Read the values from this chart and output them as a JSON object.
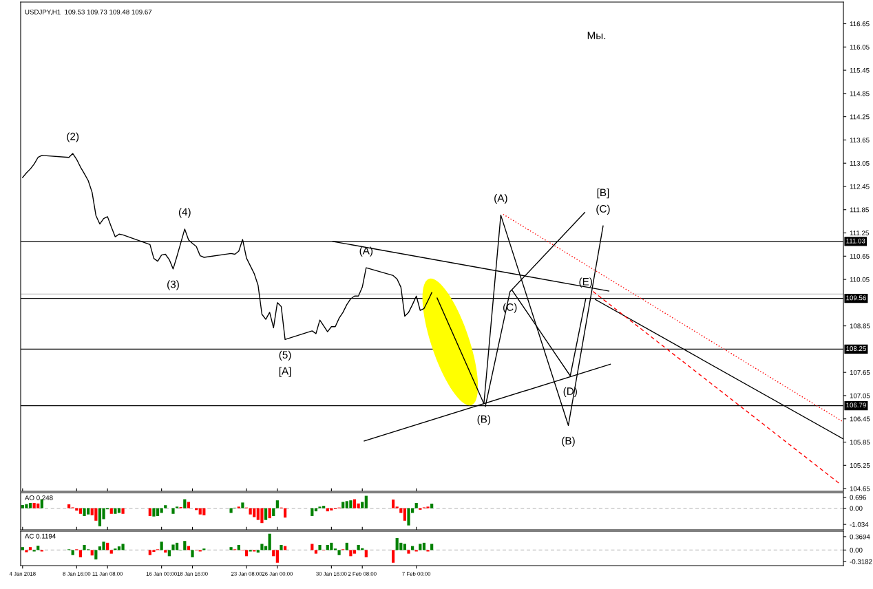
{
  "chart_data": [
    {
      "type": "line",
      "title": "USDJPY,H1  109.53 109.73 109.48 109.67",
      "xlim": [
        "2018-01-03T20:00",
        "2018-03-15T21:00"
      ],
      "ylim": [
        104.58,
        117.21
      ],
      "xticks": [
        {
          "value": "2018-01-04T00:00",
          "label": null
        },
        {
          "value": "2018-01-08T16:00",
          "label": null
        },
        {
          "value": "2018-01-11T08:00",
          "label": null
        },
        {
          "value": "2018-01-16T00:00",
          "label": null
        },
        {
          "value": "2018-01-18T16:00",
          "label": null
        },
        {
          "value": "2018-01-23T08:00",
          "label": null
        },
        {
          "value": "2018-01-26T00:00",
          "label": null
        },
        {
          "value": "2018-01-30T16:00",
          "label": null
        },
        {
          "value": "2018-02-02T08:00",
          "label": null
        },
        {
          "value": "2018-02-07T00:00",
          "label": null
        }
      ],
      "yticks": [
        104.65,
        105.25,
        105.85,
        106.45,
        107.05,
        107.65,
        108.85,
        110.05,
        110.65,
        111.25,
        111.85,
        112.45,
        113.05,
        113.65,
        114.25,
        114.85,
        115.45,
        116.05,
        116.65
      ],
      "tick_labels": "y",
      "x": [
        "2018-01-04T00:00",
        "2018-01-04T08:00",
        "2018-01-04T16:00",
        "2018-01-05T00:00",
        "2018-01-05T08:00",
        "2018-01-05T16:00",
        "2018-01-08T00:00",
        "2018-01-08T08:00",
        "2018-01-08T16:00",
        "2018-01-09T00:00",
        "2018-01-09T08:00",
        "2018-01-09T16:00",
        "2018-01-10T00:00",
        "2018-01-10T08:00",
        "2018-01-10T16:00",
        "2018-01-11T00:00",
        "2018-01-11T08:00",
        "2018-01-11T16:00",
        "2018-01-12T00:00",
        "2018-01-12T08:00",
        "2018-01-12T16:00",
        "2018-01-15T00:00",
        "2018-01-15T08:00",
        "2018-01-15T16:00",
        "2018-01-16T00:00",
        "2018-01-16T08:00",
        "2018-01-16T16:00",
        "2018-01-17T00:00",
        "2018-01-17T08:00",
        "2018-01-17T16:00",
        "2018-01-18T00:00",
        "2018-01-18T08:00",
        "2018-01-18T16:00",
        "2018-01-19T00:00",
        "2018-01-19T08:00",
        "2018-01-19T16:00",
        "2018-01-22T00:00",
        "2018-01-22T08:00",
        "2018-01-22T16:00",
        "2018-01-23T00:00",
        "2018-01-23T08:00",
        "2018-01-23T16:00",
        "2018-01-24T00:00",
        "2018-01-24T08:00",
        "2018-01-24T16:00",
        "2018-01-25T00:00",
        "2018-01-25T08:00",
        "2018-01-25T16:00",
        "2018-01-26T00:00",
        "2018-01-26T08:00",
        "2018-01-26T16:00",
        "2018-01-29T00:00",
        "2018-01-29T08:00",
        "2018-01-29T16:00",
        "2018-01-30T00:00",
        "2018-01-30T08:00",
        "2018-01-30T16:00",
        "2018-01-31T00:00",
        "2018-01-31T08:00",
        "2018-01-31T16:00",
        "2018-02-01T00:00",
        "2018-02-01T08:00",
        "2018-02-01T16:00",
        "2018-02-02T00:00",
        "2018-02-02T08:00",
        "2018-02-02T16:00",
        "2018-02-05T00:00",
        "2018-02-05T08:00",
        "2018-02-05T16:00",
        "2018-02-06T00:00",
        "2018-02-06T08:00",
        "2018-02-06T16:00",
        "2018-02-07T00:00",
        "2018-02-07T08:00",
        "2018-02-07T16:00",
        "2018-02-08T00:00",
        "2018-02-08T08:00"
      ],
      "series": [
        {
          "color": "#000000",
          "values": [
            112.68,
            112.8,
            112.9,
            113.03,
            113.2,
            113.25,
            113.2,
            113.3,
            113.15,
            112.95,
            112.78,
            112.6,
            112.3,
            111.7,
            111.48,
            111.62,
            111.67,
            111.4,
            111.15,
            111.22,
            111.2,
            110.95,
            110.59,
            110.52,
            110.68,
            110.7,
            110.56,
            110.32,
            110.65,
            111.0,
            111.35,
            111.07,
            110.98,
            110.9,
            110.66,
            110.62,
            110.72,
            110.7,
            110.78,
            111.08,
            110.6,
            110.4,
            110.2,
            109.9,
            109.15,
            109.02,
            109.2,
            108.8,
            109.45,
            109.35,
            108.5,
            108.72,
            108.65,
            109.0,
            108.85,
            108.7,
            108.83,
            108.83,
            109.05,
            109.2,
            109.4,
            109.55,
            109.62,
            109.62,
            109.85,
            110.35,
            110.15,
            110.06,
            109.85,
            109.1,
            109.2,
            109.4,
            109.62,
            109.25,
            109.3,
            109.5,
            109.71
          ]
        },
        {
          "type": "line",
          "color": "#000000",
          "x": [
            "2018-02-08T19:00",
            "2018-02-12T20:00",
            "2018-02-14T07:00",
            "2018-02-20T03:00",
            "2018-02-23T03:00"
          ],
          "values": [
            109.57,
            106.84,
            111.71,
            106.28,
            111.43
          ]
        },
        {
          "type": "line",
          "color": "#000000",
          "x": [
            "2018-02-12T23:00",
            "2018-02-15T02:00",
            "2018-02-21T13:00"
          ],
          "values": [
            106.77,
            109.73,
            111.78
          ]
        },
        {
          "type": "line",
          "color": "#000000",
          "x": [
            "2018-02-15T07:00",
            "2018-02-20T07:00",
            "2018-02-21T15:00"
          ],
          "values": [
            109.76,
            107.56,
            109.55
          ]
        },
        {
          "type": "line",
          "color": "#000000",
          "x": [
            "2018-01-30T19:00",
            "2018-02-23T15:00"
          ],
          "values": [
            111.03,
            109.75
          ]
        },
        {
          "type": "line",
          "color": "#000000",
          "x": [
            "2018-02-02T12:00",
            "2018-02-23T18:00"
          ],
          "values": [
            105.88,
            107.86
          ]
        },
        {
          "type": "line",
          "color": "#000000",
          "x": [
            "2018-02-22T11:00",
            "2018-03-15T21:00"
          ],
          "values": [
            109.53,
            105.93
          ]
        },
        {
          "type": "line",
          "color": "#ff0000",
          "line_style": "dotted",
          "x": [
            "2018-02-14T12:00",
            "2018-03-15T21:00"
          ],
          "values": [
            111.73,
            106.37
          ]
        },
        {
          "type": "line",
          "color": "#ff0000",
          "line_style": "dashed",
          "x": [
            "2018-02-22T06:00",
            "2018-03-15T16:00"
          ],
          "values": [
            109.74,
            104.75
          ]
        }
      ],
      "ref_lines": [
        {
          "axis": "y",
          "value": 111.03,
          "label": "111.03",
          "color": "#000000"
        },
        {
          "axis": "y",
          "value": 109.67,
          "label": null,
          "color": "#c0c0c0"
        },
        {
          "axis": "y",
          "value": 109.56,
          "label": "109.56",
          "color": "#000000"
        },
        {
          "axis": "y",
          "value": 108.25,
          "label": "108.25",
          "color": "#000000"
        },
        {
          "axis": "y",
          "value": 106.79,
          "label": "106.79",
          "color": "#000000"
        }
      ],
      "annotations": [
        {
          "text": "(2)",
          "x": "2018-01-08T08:00",
          "y": 113.3
        },
        {
          "text": "(4)",
          "x": "2018-01-18T00:00",
          "y": 111.35
        },
        {
          "text": "(3)",
          "x": "2018-01-17T00:00",
          "y": 110.32
        },
        {
          "text": "(5)",
          "x": "2018-01-26T16:00",
          "y": 108.5
        },
        {
          "text": "[A]",
          "x": "2018-01-26T16:00",
          "y": 108.5
        },
        {
          "text": "(A)",
          "x": "2018-02-02T16:00",
          "y": 110.35
        },
        {
          "text": "(A)",
          "x": "2018-02-14T07:00",
          "y": 111.71
        },
        {
          "text": "(C)",
          "x": "2018-02-23T03:00",
          "y": 111.43
        },
        {
          "text": "[B]",
          "x": "2018-02-23T03:00",
          "y": 111.43
        },
        {
          "text": "(C)",
          "x": "2018-02-15T02:00",
          "y": 109.73
        },
        {
          "text": "(E)",
          "x": "2018-02-21T15:00",
          "y": 109.55
        },
        {
          "text": "(D)",
          "x": "2018-02-20T07:00",
          "y": 107.56
        },
        {
          "text": "(B)",
          "x": "2018-02-12T20:00",
          "y": 106.84
        },
        {
          "text": "(B)",
          "x": "2018-02-20T03:00",
          "y": 106.28
        },
        "Мы."
      ]
    },
    {
      "type": "bar",
      "title": "AO 0.248",
      "xlim": [
        "2018-01-03T20:00",
        "2018-03-15T21:00"
      ],
      "ylim": [
        -1.38,
        0.99
      ],
      "xticks": [
        {
          "value": "2018-01-04T00:00",
          "label": null
        },
        {
          "value": "2018-01-08T16:00",
          "label": null
        },
        {
          "value": "2018-01-11T08:00",
          "label": null
        },
        {
          "value": "2018-01-16T00:00",
          "label": null
        },
        {
          "value": "2018-01-18T16:00",
          "label": null
        },
        {
          "value": "2018-01-23T08:00",
          "label": null
        },
        {
          "value": "2018-01-26T00:00",
          "label": null
        },
        {
          "value": "2018-01-30T16:00",
          "label": null
        },
        {
          "value": "2018-02-02T08:00",
          "label": null
        },
        {
          "value": "2018-02-07T00:00",
          "label": null
        }
      ],
      "yticks": [
        -1.034,
        {
          "value": 0,
          "label": "0.00"
        },
        0.696
      ],
      "tick_labels": "y",
      "x": [
        "2018-01-04T00:00",
        "2018-01-04T08:00",
        "2018-01-04T16:00",
        "2018-01-05T00:00",
        "2018-01-05T08:00",
        "2018-01-05T16:00",
        "2018-01-08T00:00",
        "2018-01-08T08:00",
        "2018-01-08T16:00",
        "2018-01-09T00:00",
        "2018-01-09T08:00",
        "2018-01-09T16:00",
        "2018-01-10T00:00",
        "2018-01-10T08:00",
        "2018-01-10T16:00",
        "2018-01-11T00:00",
        "2018-01-11T08:00",
        "2018-01-11T16:00",
        "2018-01-12T00:00",
        "2018-01-12T08:00",
        "2018-01-12T16:00",
        "2018-01-15T00:00",
        "2018-01-15T08:00",
        "2018-01-15T16:00",
        "2018-01-16T00:00",
        "2018-01-16T08:00",
        "2018-01-16T16:00",
        "2018-01-17T00:00",
        "2018-01-17T08:00",
        "2018-01-17T16:00",
        "2018-01-18T00:00",
        "2018-01-18T08:00",
        "2018-01-18T16:00",
        "2018-01-19T00:00",
        "2018-01-19T08:00",
        "2018-01-19T16:00",
        "2018-01-22T00:00",
        "2018-01-22T08:00",
        "2018-01-22T16:00",
        "2018-01-23T00:00",
        "2018-01-23T08:00",
        "2018-01-23T16:00",
        "2018-01-24T00:00",
        "2018-01-24T08:00",
        "2018-01-24T16:00",
        "2018-01-25T00:00",
        "2018-01-25T08:00",
        "2018-01-25T16:00",
        "2018-01-26T00:00",
        "2018-01-26T08:00",
        "2018-01-26T16:00",
        "2018-01-29T00:00",
        "2018-01-29T08:00",
        "2018-01-29T16:00",
        "2018-01-30T00:00",
        "2018-01-30T08:00",
        "2018-01-30T16:00",
        "2018-01-31T00:00",
        "2018-01-31T08:00",
        "2018-01-31T16:00",
        "2018-02-01T00:00",
        "2018-02-01T08:00",
        "2018-02-01T16:00",
        "2018-02-02T00:00",
        "2018-02-02T08:00",
        "2018-02-02T16:00",
        "2018-02-05T00:00",
        "2018-02-05T08:00",
        "2018-02-05T16:00",
        "2018-02-06T00:00",
        "2018-02-06T08:00",
        "2018-02-06T16:00",
        "2018-02-07T00:00",
        "2018-02-07T08:00",
        "2018-02-07T16:00",
        "2018-02-08T00:00",
        "2018-02-08T08:00"
      ],
      "values": [
        0.2,
        0.26,
        0.33,
        0.33,
        0.3,
        0.57,
        0.25,
        0.05,
        -0.15,
        -0.36,
        -0.5,
        -0.4,
        -0.45,
        -0.8,
        -1.15,
        -0.7,
        -0.07,
        -0.36,
        -0.36,
        -0.3,
        -0.36,
        -0.5,
        -0.53,
        -0.5,
        -0.3,
        0.19,
        null,
        -0.36,
        0.1,
        0.07,
        0.57,
        0.4,
        null,
        -0.12,
        -0.4,
        -0.45,
        -0.3,
        0.03,
        0.1,
        0.36,
        0.04,
        -0.4,
        -0.57,
        -0.75,
        -0.95,
        -0.75,
        -0.64,
        -0.5,
        0.5,
        0.04,
        -0.6,
        -0.5,
        -0.2,
        0.1,
        0.15,
        -0.2,
        -0.14,
        -0.05,
        0.04,
        0.4,
        0.45,
        0.5,
        0.57,
        0.3,
        0.4,
        0.79,
        0.55,
        0.1,
        -0.3,
        -0.8,
        -1.1,
        -0.3,
        0.33,
        -0.1,
        0.05,
        0.1,
        0.29
      ],
      "colors": [
        "#008000",
        "#008000",
        "#008000",
        "#ff0000",
        "#ff0000",
        "#008000",
        "#ff0000",
        "#ff0000",
        "#ff0000",
        "#ff0000",
        "#008000",
        "#008000",
        "#ff0000",
        "#ff0000",
        "#008000",
        "#008000",
        "#008000",
        "#ff0000",
        "#008000",
        "#008000",
        "#ff0000",
        "#ff0000",
        "#008000",
        "#008000",
        "#008000",
        "#008000",
        "#ff0000",
        "#008000",
        "#008000",
        "#ff0000",
        "#008000",
        "#ff0000",
        "#ff0000",
        "#ff0000",
        "#ff0000",
        "#ff0000",
        "#008000",
        "#008000",
        "#ff0000",
        "#008000",
        "#ff0000",
        "#ff0000",
        "#ff0000",
        "#ff0000",
        "#ff0000",
        "#008000",
        "#ff0000",
        "#008000",
        "#008000",
        "#ff0000",
        "#ff0000",
        "#008000",
        "#008000",
        "#008000",
        "#008000",
        "#ff0000",
        "#ff0000",
        "#ff0000",
        "#ff0000",
        "#008000",
        "#008000",
        "#008000",
        "#ff0000",
        "#ff0000",
        "#008000",
        "#008000",
        "#ff0000",
        "#ff0000",
        "#ff0000",
        "#ff0000",
        "#008000",
        "#008000",
        "#008000",
        "#ff0000",
        "#ff0000",
        "#ff0000",
        "#008000"
      ],
      "ref_lines": [
        {
          "axis": "y",
          "value": 0,
          "label": null,
          "color": "#c0c0c0",
          "line_style": "dashed"
        }
      ]
    },
    {
      "type": "bar",
      "title": "AC 0.1194",
      "xlim": [
        "2018-01-03T20:00",
        "2018-03-15T21:00"
      ],
      "ylim": [
        -0.43,
        0.52
      ],
      "xticks": [
        {
          "value": "2018-01-04T00:00",
          "label": "4 Jan 2018"
        },
        {
          "value": "2018-01-08T16:00",
          "label": "8 Jan 16:00"
        },
        {
          "value": "2018-01-11T08:00",
          "label": "11 Jan 08:00"
        },
        {
          "value": "2018-01-16T00:00",
          "label": "16 Jan 00:00"
        },
        {
          "value": "2018-01-18T16:00",
          "label": "18 Jan 16:00"
        },
        {
          "value": "2018-01-23T08:00",
          "label": "23 Jan 08:00"
        },
        {
          "value": "2018-01-26T00:00",
          "label": "26 Jan 00:00"
        },
        {
          "value": "2018-01-30T16:00",
          "label": "30 Jan 16:00"
        },
        {
          "value": "2018-02-02T08:00",
          "label": "2 Feb 08:00"
        },
        {
          "value": "2018-02-07T00:00",
          "label": "7 Feb 00:00"
        }
      ],
      "yticks": [
        -0.3182,
        {
          "value": 0,
          "label": "0.00"
        },
        0.3694
      ],
      "x": [
        "2018-01-04T00:00",
        "2018-01-04T08:00",
        "2018-01-04T16:00",
        "2018-01-05T00:00",
        "2018-01-05T08:00",
        "2018-01-05T16:00",
        "2018-01-08T00:00",
        "2018-01-08T08:00",
        "2018-01-08T16:00",
        "2018-01-09T00:00",
        "2018-01-09T08:00",
        "2018-01-09T16:00",
        "2018-01-10T00:00",
        "2018-01-10T08:00",
        "2018-01-10T16:00",
        "2018-01-11T00:00",
        "2018-01-11T08:00",
        "2018-01-11T16:00",
        "2018-01-12T00:00",
        "2018-01-12T08:00",
        "2018-01-12T16:00",
        "2018-01-15T00:00",
        "2018-01-15T08:00",
        "2018-01-15T16:00",
        "2018-01-16T00:00",
        "2018-01-16T08:00",
        "2018-01-16T16:00",
        "2018-01-17T00:00",
        "2018-01-17T08:00",
        "2018-01-17T16:00",
        "2018-01-18T00:00",
        "2018-01-18T08:00",
        "2018-01-18T16:00",
        "2018-01-19T00:00",
        "2018-01-19T08:00",
        "2018-01-19T16:00",
        "2018-01-22T00:00",
        "2018-01-22T08:00",
        "2018-01-22T16:00",
        "2018-01-23T00:00",
        "2018-01-23T08:00",
        "2018-01-23T16:00",
        "2018-01-24T00:00",
        "2018-01-24T08:00",
        "2018-01-24T16:00",
        "2018-01-25T00:00",
        "2018-01-25T08:00",
        "2018-01-25T16:00",
        "2018-01-26T00:00",
        "2018-01-26T08:00",
        "2018-01-26T16:00",
        "2018-01-29T00:00",
        "2018-01-29T08:00",
        "2018-01-29T16:00",
        "2018-01-30T00:00",
        "2018-01-30T08:00",
        "2018-01-30T16:00",
        "2018-01-31T00:00",
        "2018-01-31T08:00",
        "2018-01-31T16:00",
        "2018-02-01T00:00",
        "2018-02-01T08:00",
        "2018-02-01T16:00",
        "2018-02-02T00:00",
        "2018-02-02T08:00",
        "2018-02-02T16:00",
        "2018-02-05T00:00",
        "2018-02-05T08:00",
        "2018-02-05T16:00",
        "2018-02-06T00:00",
        "2018-02-06T08:00",
        "2018-02-06T16:00",
        "2018-02-07T00:00",
        "2018-02-07T08:00",
        "2018-02-07T16:00",
        "2018-02-08T00:00",
        "2018-02-08T08:00"
      ],
      "values": [
        0.08,
        -0.06,
        0.08,
        -0.04,
        0.12,
        -0.04,
        0.02,
        -0.14,
        0.02,
        -0.2,
        0.14,
        0.02,
        -0.15,
        -0.26,
        0.1,
        0.23,
        0.2,
        -0.1,
        0.04,
        0.1,
        0.17,
        -0.14,
        -0.05,
        0.02,
        0.23,
        -0.07,
        -0.17,
        0.15,
        0.2,
        -0.01,
        0.25,
        0.11,
        -0.2,
        -0.01,
        -0.04,
        0.04,
        0.08,
        0.02,
        0.14,
        -0.01,
        -0.17,
        -0.04,
        -0.04,
        -0.07,
        0.17,
        0.11,
        0.45,
        -0.17,
        -0.35,
        0.14,
        0.11,
        0.17,
        -0.1,
        0.14,
        -0.01,
        0.14,
        0.2,
        0.04,
        -0.14,
        0.02,
        0.2,
        -0.17,
        -0.1,
        0.14,
        0.05,
        -0.2,
        -0.35,
        0.33,
        0.2,
        0.17,
        -0.1,
        0.11,
        -0.04,
        0.17,
        0.2,
        -0.04,
        0.17
      ],
      "colors": [
        "#008000",
        "#ff0000",
        "#ff0000",
        "#008000",
        "#008000",
        "#ff0000",
        "#008000",
        "#008000",
        "#ff0000",
        "#ff0000",
        "#008000",
        "#008000",
        "#ff0000",
        "#008000",
        "#008000",
        "#008000",
        "#ff0000",
        "#ff0000",
        "#008000",
        "#008000",
        "#008000",
        "#ff0000",
        "#ff0000",
        "#ff0000",
        "#008000",
        "#ff0000",
        "#008000",
        "#008000",
        "#008000",
        "#008000",
        "#008000",
        "#ff0000",
        "#008000",
        "#ff0000",
        "#ff0000",
        "#008000",
        "#008000",
        "#ff0000",
        "#008000",
        "#ff0000",
        "#ff0000",
        "#008000",
        "#ff0000",
        "#008000",
        "#008000",
        "#008000",
        "#008000",
        "#ff0000",
        "#ff0000",
        "#008000",
        "#ff0000",
        "#ff0000",
        "#ff0000",
        "#008000",
        "#ff0000",
        "#008000",
        "#008000",
        "#008000",
        "#008000",
        "#ff0000",
        "#008000",
        "#ff0000",
        "#ff0000",
        "#008000",
        "#008000",
        "#ff0000",
        "#ff0000",
        "#008000",
        "#008000",
        "#008000",
        "#ff0000",
        "#008000",
        "#ff0000",
        "#008000",
        "#008000",
        "#ff0000",
        "#008000"
      ],
      "ref_lines": [
        {
          "axis": "y",
          "value": 0,
          "label": null,
          "color": "#c0c0c0",
          "line_style": "dashed"
        }
      ]
    }
  ]
}
